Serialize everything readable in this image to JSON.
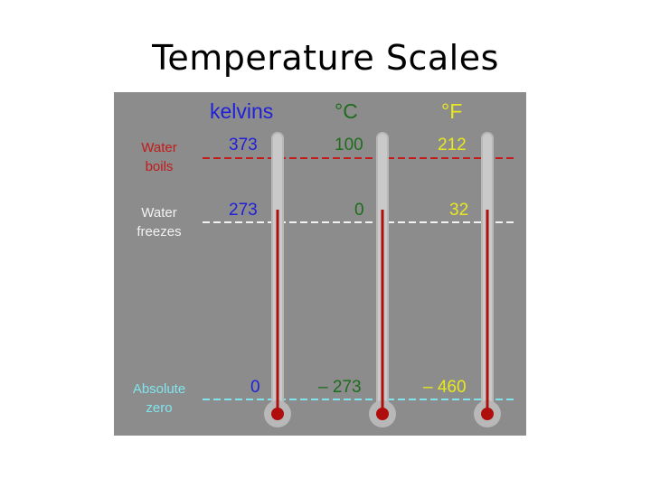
{
  "title": "Temperature Scales",
  "headers": {
    "kelvin": "kelvins",
    "celsius": "°C",
    "fahrenheit": "°F"
  },
  "rows": [
    {
      "label_line1": "Water",
      "label_line2": "boils",
      "kelvin": "373",
      "celsius": "100",
      "fahrenheit": "212"
    },
    {
      "label_line1": "Water",
      "label_line2": "freezes",
      "kelvin": "273",
      "celsius": "0",
      "fahrenheit": "32"
    },
    {
      "label_line1": "Absolute",
      "label_line2": "zero",
      "kelvin": "0",
      "celsius": "– 273",
      "fahrenheit": "– 460"
    }
  ],
  "colors": {
    "kelvin": "#2020d8",
    "celsius": "#1d6d1d",
    "fahrenheit": "#e8e820",
    "boils": "#c41a1a",
    "freezes": "#f2f2f2",
    "absolute_zero": "#7fe4ec",
    "mercury": "#b00d0d",
    "panel": "#8c8c8c"
  }
}
